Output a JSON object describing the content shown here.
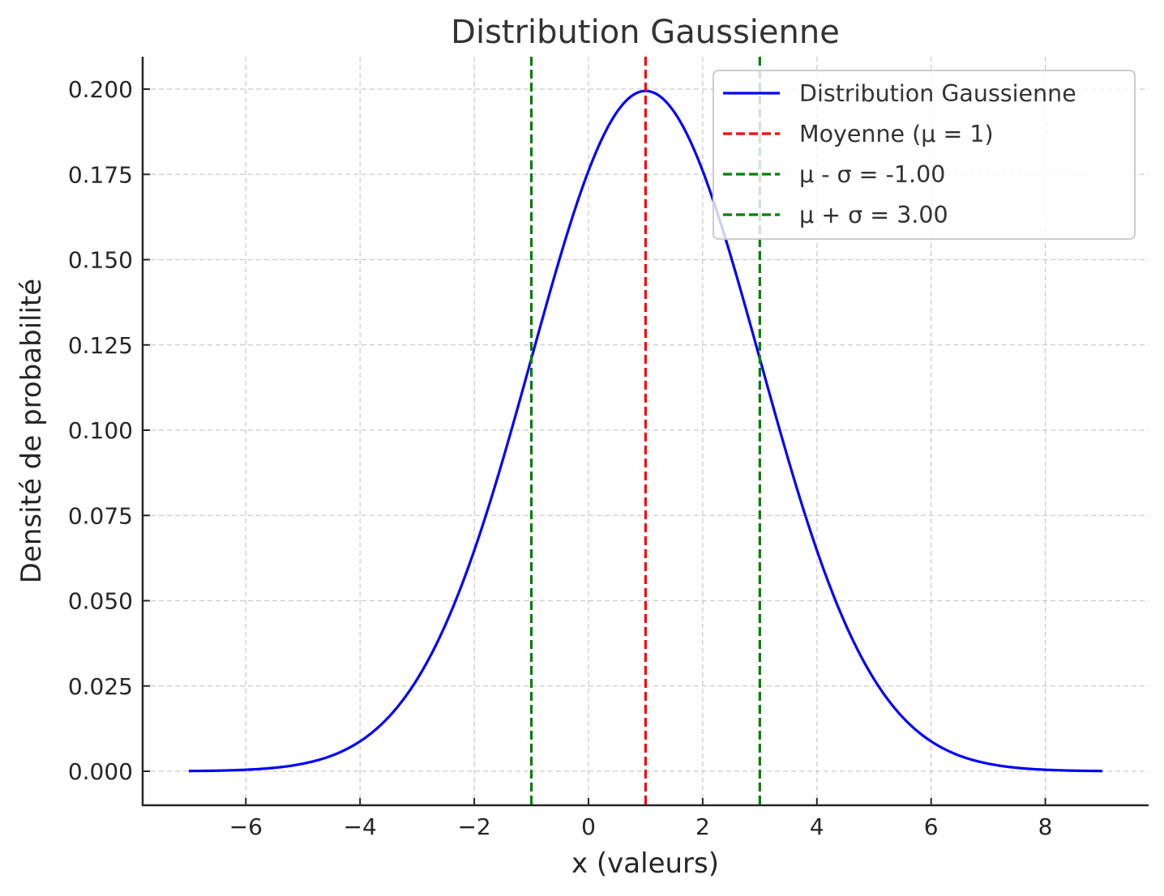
{
  "chart_data": {
    "type": "line",
    "title": "Distribution Gaussienne",
    "xlabel": "x (valeurs)",
    "ylabel": "Densité de probabilité",
    "xlim": [
      -7.8,
      9.8
    ],
    "ylim": [
      -0.01,
      0.21
    ],
    "x_ticks": [
      -6,
      -4,
      -2,
      0,
      2,
      4,
      6,
      8
    ],
    "x_tick_labels": [
      "−6",
      "−4",
      "−2",
      "0",
      "2",
      "4",
      "6",
      "8"
    ],
    "y_ticks": [
      0.0,
      0.025,
      0.05,
      0.075,
      0.1,
      0.125,
      0.15,
      0.175,
      0.2
    ],
    "y_tick_labels": [
      "0.000",
      "0.025",
      "0.050",
      "0.075",
      "0.100",
      "0.125",
      "0.150",
      "0.175",
      "0.200"
    ],
    "grid": true,
    "legend_position": "upper right",
    "series": [
      {
        "name": "Distribution Gaussienne",
        "color": "#0000ff",
        "style": "solid",
        "distribution": {
          "mu": 1,
          "sigma": 2
        },
        "x_range": [
          -7,
          9
        ],
        "x": [
          -7,
          -6,
          -5,
          -4,
          -3,
          -2,
          -1,
          0,
          1,
          2,
          3,
          4,
          5,
          6,
          7,
          8,
          9
        ],
        "values": [
          0.0001,
          0.0004,
          0.0022,
          0.0088,
          0.027,
          0.0648,
          0.121,
          0.176,
          0.1995,
          0.176,
          0.121,
          0.0648,
          0.027,
          0.0088,
          0.0022,
          0.0004,
          0.0001
        ]
      }
    ],
    "vlines": [
      {
        "name": "Moyenne (μ = 1)",
        "x": 1,
        "color": "#ff0000",
        "style": "dashed"
      },
      {
        "name": "μ - σ = -1.00",
        "x": -1,
        "color": "#008000",
        "style": "dashed"
      },
      {
        "name": "μ + σ = 3.00",
        "x": 3,
        "color": "#008000",
        "style": "dashed"
      }
    ]
  },
  "legend": [
    {
      "label": "Distribution Gaussienne",
      "color": "#0000ff",
      "style": "solid"
    },
    {
      "label": "Moyenne (μ = 1)",
      "color": "#ff0000",
      "style": "dashed"
    },
    {
      "label": "μ - σ = -1.00",
      "color": "#008000",
      "style": "dashed"
    },
    {
      "label": "μ + σ = 3.00",
      "color": "#008000",
      "style": "dashed"
    }
  ]
}
